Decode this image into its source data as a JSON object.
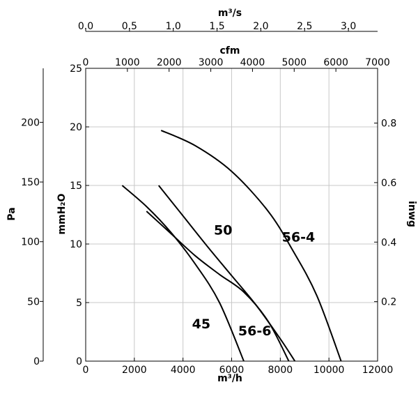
{
  "chart_data": {
    "type": "line",
    "grid": true,
    "axes": {
      "x_primary": {
        "label": "m³/h",
        "range": [
          0,
          12000
        ],
        "ticks": [
          "0",
          "2000",
          "4000",
          "6000",
          "8000",
          "10000",
          "12000"
        ]
      },
      "x_cfm": {
        "label": "cfm",
        "range": [
          0,
          7000
        ],
        "ticks": [
          "0",
          "1000",
          "2000",
          "3000",
          "4000",
          "5000",
          "6000",
          "7000"
        ]
      },
      "x_m3s": {
        "label": "m³/s",
        "range": [
          0,
          3.3333
        ],
        "ticks": [
          "0.0",
          "0.5",
          "1.0",
          "1.5",
          "2.0",
          "2.5",
          "3.0"
        ]
      },
      "y_primary": {
        "label": "mmH₂O",
        "range": [
          0,
          25
        ],
        "ticks": [
          "0",
          "5",
          "10",
          "15",
          "20",
          "25"
        ]
      },
      "y_pa": {
        "label": "Pa",
        "range": [
          0,
          245.2
        ],
        "ticks": [
          "0",
          "50",
          "100",
          "150",
          "200"
        ]
      },
      "y_inwg": {
        "label": "inwg",
        "range": [
          0,
          0.984
        ],
        "ticks": [
          "0.2",
          "0.4",
          "0.6",
          "0.8"
        ]
      }
    },
    "series": [
      {
        "name": "45",
        "points": [
          [
            1500,
            15.0
          ],
          [
            2500,
            13.2
          ],
          [
            3500,
            11.0
          ],
          [
            4500,
            8.3
          ],
          [
            5500,
            5.0
          ],
          [
            6500,
            0.0
          ]
        ]
      },
      {
        "name": "50",
        "points": [
          [
            3000,
            15.0
          ],
          [
            4000,
            12.4
          ],
          [
            5000,
            9.8
          ],
          [
            6000,
            7.3
          ],
          [
            7000,
            4.8
          ],
          [
            8000,
            1.9
          ],
          [
            8600,
            0.0
          ]
        ]
      },
      {
        "name": "56-4",
        "points": [
          [
            3100,
            19.7
          ],
          [
            4500,
            18.4
          ],
          [
            6000,
            16.2
          ],
          [
            7500,
            12.8
          ],
          [
            8500,
            9.5
          ],
          [
            9500,
            5.6
          ],
          [
            10500,
            0.0
          ]
        ]
      },
      {
        "name": "56-6",
        "points": [
          [
            2500,
            12.8
          ],
          [
            3500,
            10.9
          ],
          [
            4500,
            9.0
          ],
          [
            5500,
            7.4
          ],
          [
            6500,
            5.9
          ],
          [
            7500,
            3.4
          ],
          [
            8350,
            0.0
          ]
        ]
      }
    ],
    "annotations": [
      {
        "text": "50",
        "x": 5650,
        "y": 10.8
      },
      {
        "text": "56-4",
        "x": 8750,
        "y": 10.2
      },
      {
        "text": "45",
        "x": 4750,
        "y": 2.8
      },
      {
        "text": "56-6",
        "x": 6950,
        "y": 2.2
      }
    ]
  }
}
